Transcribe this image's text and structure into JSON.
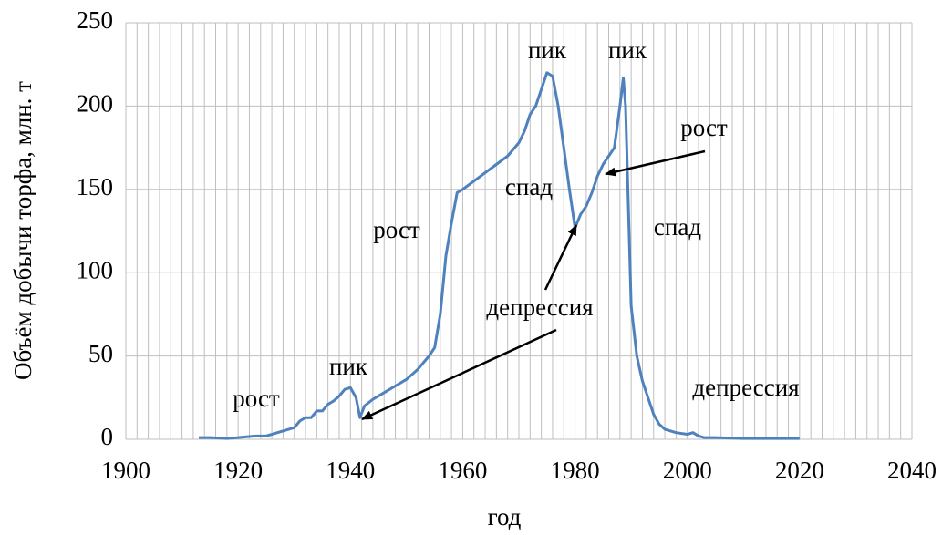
{
  "chart_data": {
    "type": "line",
    "xlabel": "год",
    "ylabel": "Объём добычи торфа, млн. т",
    "xlim": [
      1900,
      2040
    ],
    "xticks": [
      1900,
      1920,
      1940,
      1960,
      1980,
      2000,
      2020,
      2040
    ],
    "ylim": [
      0,
      250
    ],
    "yticks": [
      0,
      50,
      100,
      150,
      200,
      250
    ],
    "grid": true,
    "xgrid_step": 2,
    "series": [
      {
        "color": "#4f81bd",
        "x": [
          1913,
          1915,
          1918,
          1920,
          1923,
          1925,
          1927,
          1929,
          1930,
          1931,
          1932,
          1933,
          1934,
          1935,
          1936,
          1937,
          1938,
          1939,
          1940,
          1941,
          1941.7,
          1942.5,
          1944,
          1946,
          1948,
          1950,
          1952,
          1954,
          1955,
          1956,
          1957,
          1958,
          1959,
          1960,
          1962,
          1964,
          1966,
          1968,
          1970,
          1971,
          1972,
          1973,
          1974,
          1975,
          1976,
          1977,
          1978,
          1979,
          1980,
          1981,
          1982,
          1983,
          1984,
          1985,
          1986,
          1987,
          1988,
          1988.6,
          1989,
          1990,
          1991,
          1992,
          1993,
          1994,
          1995,
          1996,
          1998,
          2000,
          2001,
          2002,
          2003,
          2005,
          2010,
          2015,
          2020
        ],
        "values": [
          1,
          1,
          0.5,
          1,
          2,
          2,
          4,
          6,
          7,
          11,
          13,
          13,
          17,
          17,
          21,
          23,
          26,
          30,
          31,
          25,
          13,
          20,
          24,
          28,
          32,
          36,
          42,
          50,
          55,
          75,
          110,
          130,
          148,
          150,
          155,
          160,
          165,
          170,
          178,
          185,
          195,
          200,
          210,
          220,
          218,
          200,
          175,
          150,
          127,
          135,
          140,
          148,
          158,
          165,
          170,
          175,
          200,
          217,
          200,
          80,
          50,
          35,
          25,
          15,
          9,
          6,
          4,
          3,
          4,
          2,
          1,
          1,
          0.5,
          0.5,
          0.5
        ]
      }
    ],
    "annotations": [
      "рост",
      "пик",
      "рост",
      "спад",
      "пик",
      "пик",
      "рост",
      "спад",
      "депрессия",
      "депрессия"
    ]
  }
}
